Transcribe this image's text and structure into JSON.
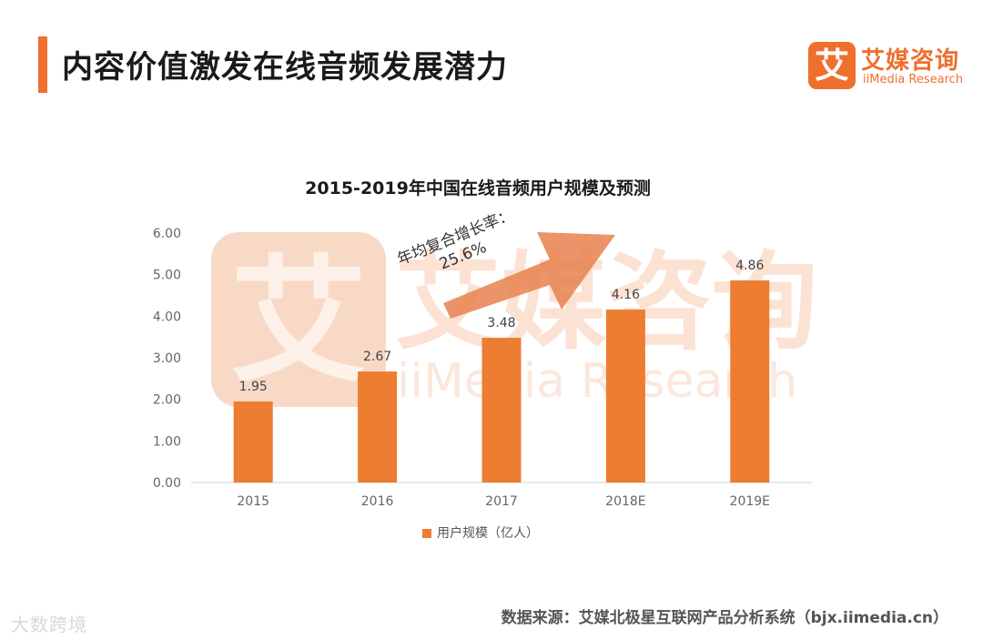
{
  "header": {
    "title": "内容价值激发在线音频发展潜力"
  },
  "logo": {
    "mark": "艾",
    "name_cn": "艾媒咨询",
    "name_en": "iiMedia Research"
  },
  "watermark": {
    "mark": "艾",
    "cn": "艾媒咨询",
    "en": "iiMedia Research"
  },
  "growth_annotation": {
    "line1": "年均复合增长率：",
    "line2": "25.6%"
  },
  "legend": {
    "label": "用户规模（亿人）"
  },
  "footer": {
    "source": "数据来源：艾媒北极星互联网产品分析系统（bjx.iimedia.cn）",
    "corner_mark": "大数跨境"
  },
  "colors": {
    "accent": "#ef6f2e",
    "bar": "#ed7d31",
    "axis_text": "#666666"
  },
  "chart_data": {
    "type": "bar",
    "title": "2015-2019年中国在线音频用户规模及预测",
    "categories": [
      "2015",
      "2016",
      "2017",
      "2018E",
      "2019E"
    ],
    "series": [
      {
        "name": "用户规模（亿人）",
        "values": [
          1.95,
          2.67,
          3.48,
          4.16,
          4.86
        ]
      }
    ],
    "value_labels": [
      "1.95",
      "2.67",
      "3.48",
      "4.16",
      "4.86"
    ],
    "yticks": [
      "0.00",
      "1.00",
      "2.00",
      "3.00",
      "4.00",
      "5.00",
      "6.00"
    ],
    "ylim": [
      0,
      6
    ],
    "xlabel": "",
    "ylabel": "",
    "grid": false,
    "legend_position": "bottom"
  }
}
